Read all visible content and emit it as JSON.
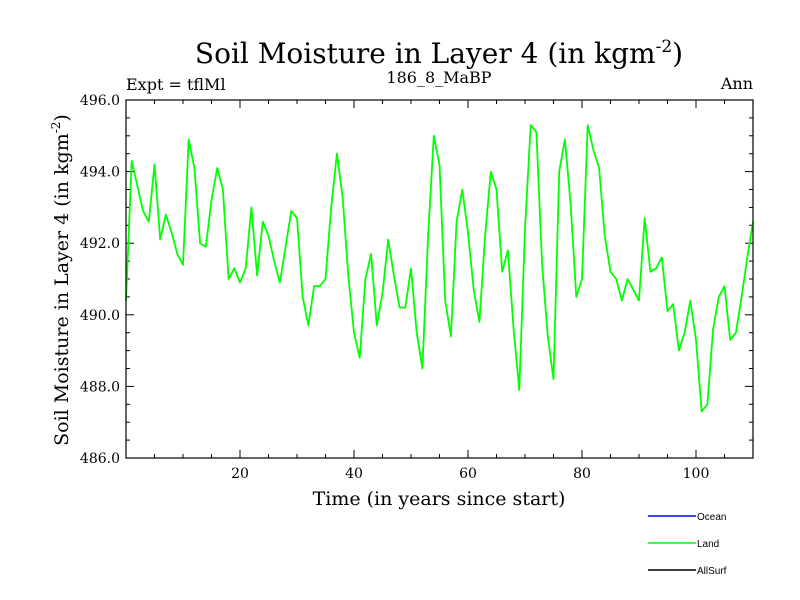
{
  "chart_data": {
    "type": "line",
    "title": "Soil Moisture in Layer 4 (in kgm",
    "title_sup": "-2",
    "title_tail": ")",
    "subtitle_left": "Expt = tflMl",
    "subtitle_center": "186_8_MaBP",
    "subtitle_right": "Ann",
    "xlabel": "Time (in years since start)",
    "ylabel": "Soil Moisture in Layer 4 (in kgm",
    "ylabel_sup": "-2",
    "ylabel_tail": ")",
    "xlim": [
      0,
      110
    ],
    "ylim": [
      486.0,
      496.0
    ],
    "xticks": [
      20,
      40,
      60,
      80,
      100
    ],
    "yticks": [
      486.0,
      488.0,
      490.0,
      492.0,
      494.0,
      496.0
    ],
    "ytick_labels": [
      "486.0",
      "488.0",
      "490.0",
      "492.0",
      "494.0",
      "496.0"
    ],
    "legend_position": "bottom-right",
    "series": [
      {
        "name": "Ocean",
        "color": "#0000ff",
        "values": []
      },
      {
        "name": "Land",
        "color": "#00ff00",
        "x": [
          0,
          1,
          2,
          3,
          4,
          5,
          6,
          7,
          8,
          9,
          10,
          11,
          12,
          13,
          14,
          15,
          16,
          17,
          18,
          19,
          20,
          21,
          22,
          23,
          24,
          25,
          26,
          27,
          28,
          29,
          30,
          31,
          32,
          33,
          34,
          35,
          36,
          37,
          38,
          39,
          40,
          41,
          42,
          43,
          44,
          45,
          46,
          47,
          48,
          49,
          50,
          51,
          52,
          53,
          54,
          55,
          56,
          57,
          58,
          59,
          60,
          61,
          62,
          63,
          64,
          65,
          66,
          67,
          68,
          69,
          70,
          71,
          72,
          73,
          74,
          75,
          76,
          77,
          78,
          79,
          80,
          81,
          82,
          83,
          84,
          85,
          86,
          87,
          88,
          89,
          90,
          91,
          92,
          93,
          94,
          95,
          96,
          97,
          98,
          99,
          100,
          101,
          102,
          103,
          104,
          105,
          106,
          107,
          108,
          109,
          110
        ],
        "values": [
          490.4,
          494.3,
          493.6,
          492.9,
          492.6,
          494.2,
          492.1,
          492.8,
          492.3,
          491.7,
          491.4,
          494.9,
          494.1,
          492.0,
          491.9,
          493.2,
          494.1,
          493.5,
          491.0,
          491.3,
          490.9,
          491.3,
          493.0,
          491.1,
          492.6,
          492.2,
          491.5,
          490.9,
          491.9,
          492.9,
          492.7,
          490.5,
          489.7,
          490.8,
          490.8,
          491.0,
          493.0,
          494.5,
          493.3,
          491.1,
          489.5,
          488.8,
          491.0,
          491.7,
          489.7,
          490.6,
          492.1,
          491.1,
          490.2,
          490.2,
          491.3,
          489.5,
          488.5,
          492.2,
          495.0,
          494.2,
          490.4,
          489.4,
          492.6,
          493.5,
          492.3,
          490.7,
          489.8,
          492.2,
          494.0,
          493.5,
          491.2,
          491.8,
          489.6,
          487.9,
          492.4,
          495.3,
          495.1,
          491.4,
          489.4,
          488.2,
          494.0,
          494.9,
          493.1,
          490.5,
          491.0,
          495.3,
          494.6,
          494.1,
          492.2,
          491.2,
          491.0,
          490.4,
          491.0,
          490.7,
          490.4,
          492.7,
          491.2,
          491.3,
          491.6,
          490.1,
          490.3,
          489.0,
          489.5,
          490.4,
          489.3,
          487.3,
          487.5,
          489.6,
          490.5,
          490.8,
          489.3,
          489.5,
          490.5,
          491.6,
          492.6
        ]
      },
      {
        "name": "AllSurf",
        "color": "#000000",
        "values": []
      }
    ]
  }
}
